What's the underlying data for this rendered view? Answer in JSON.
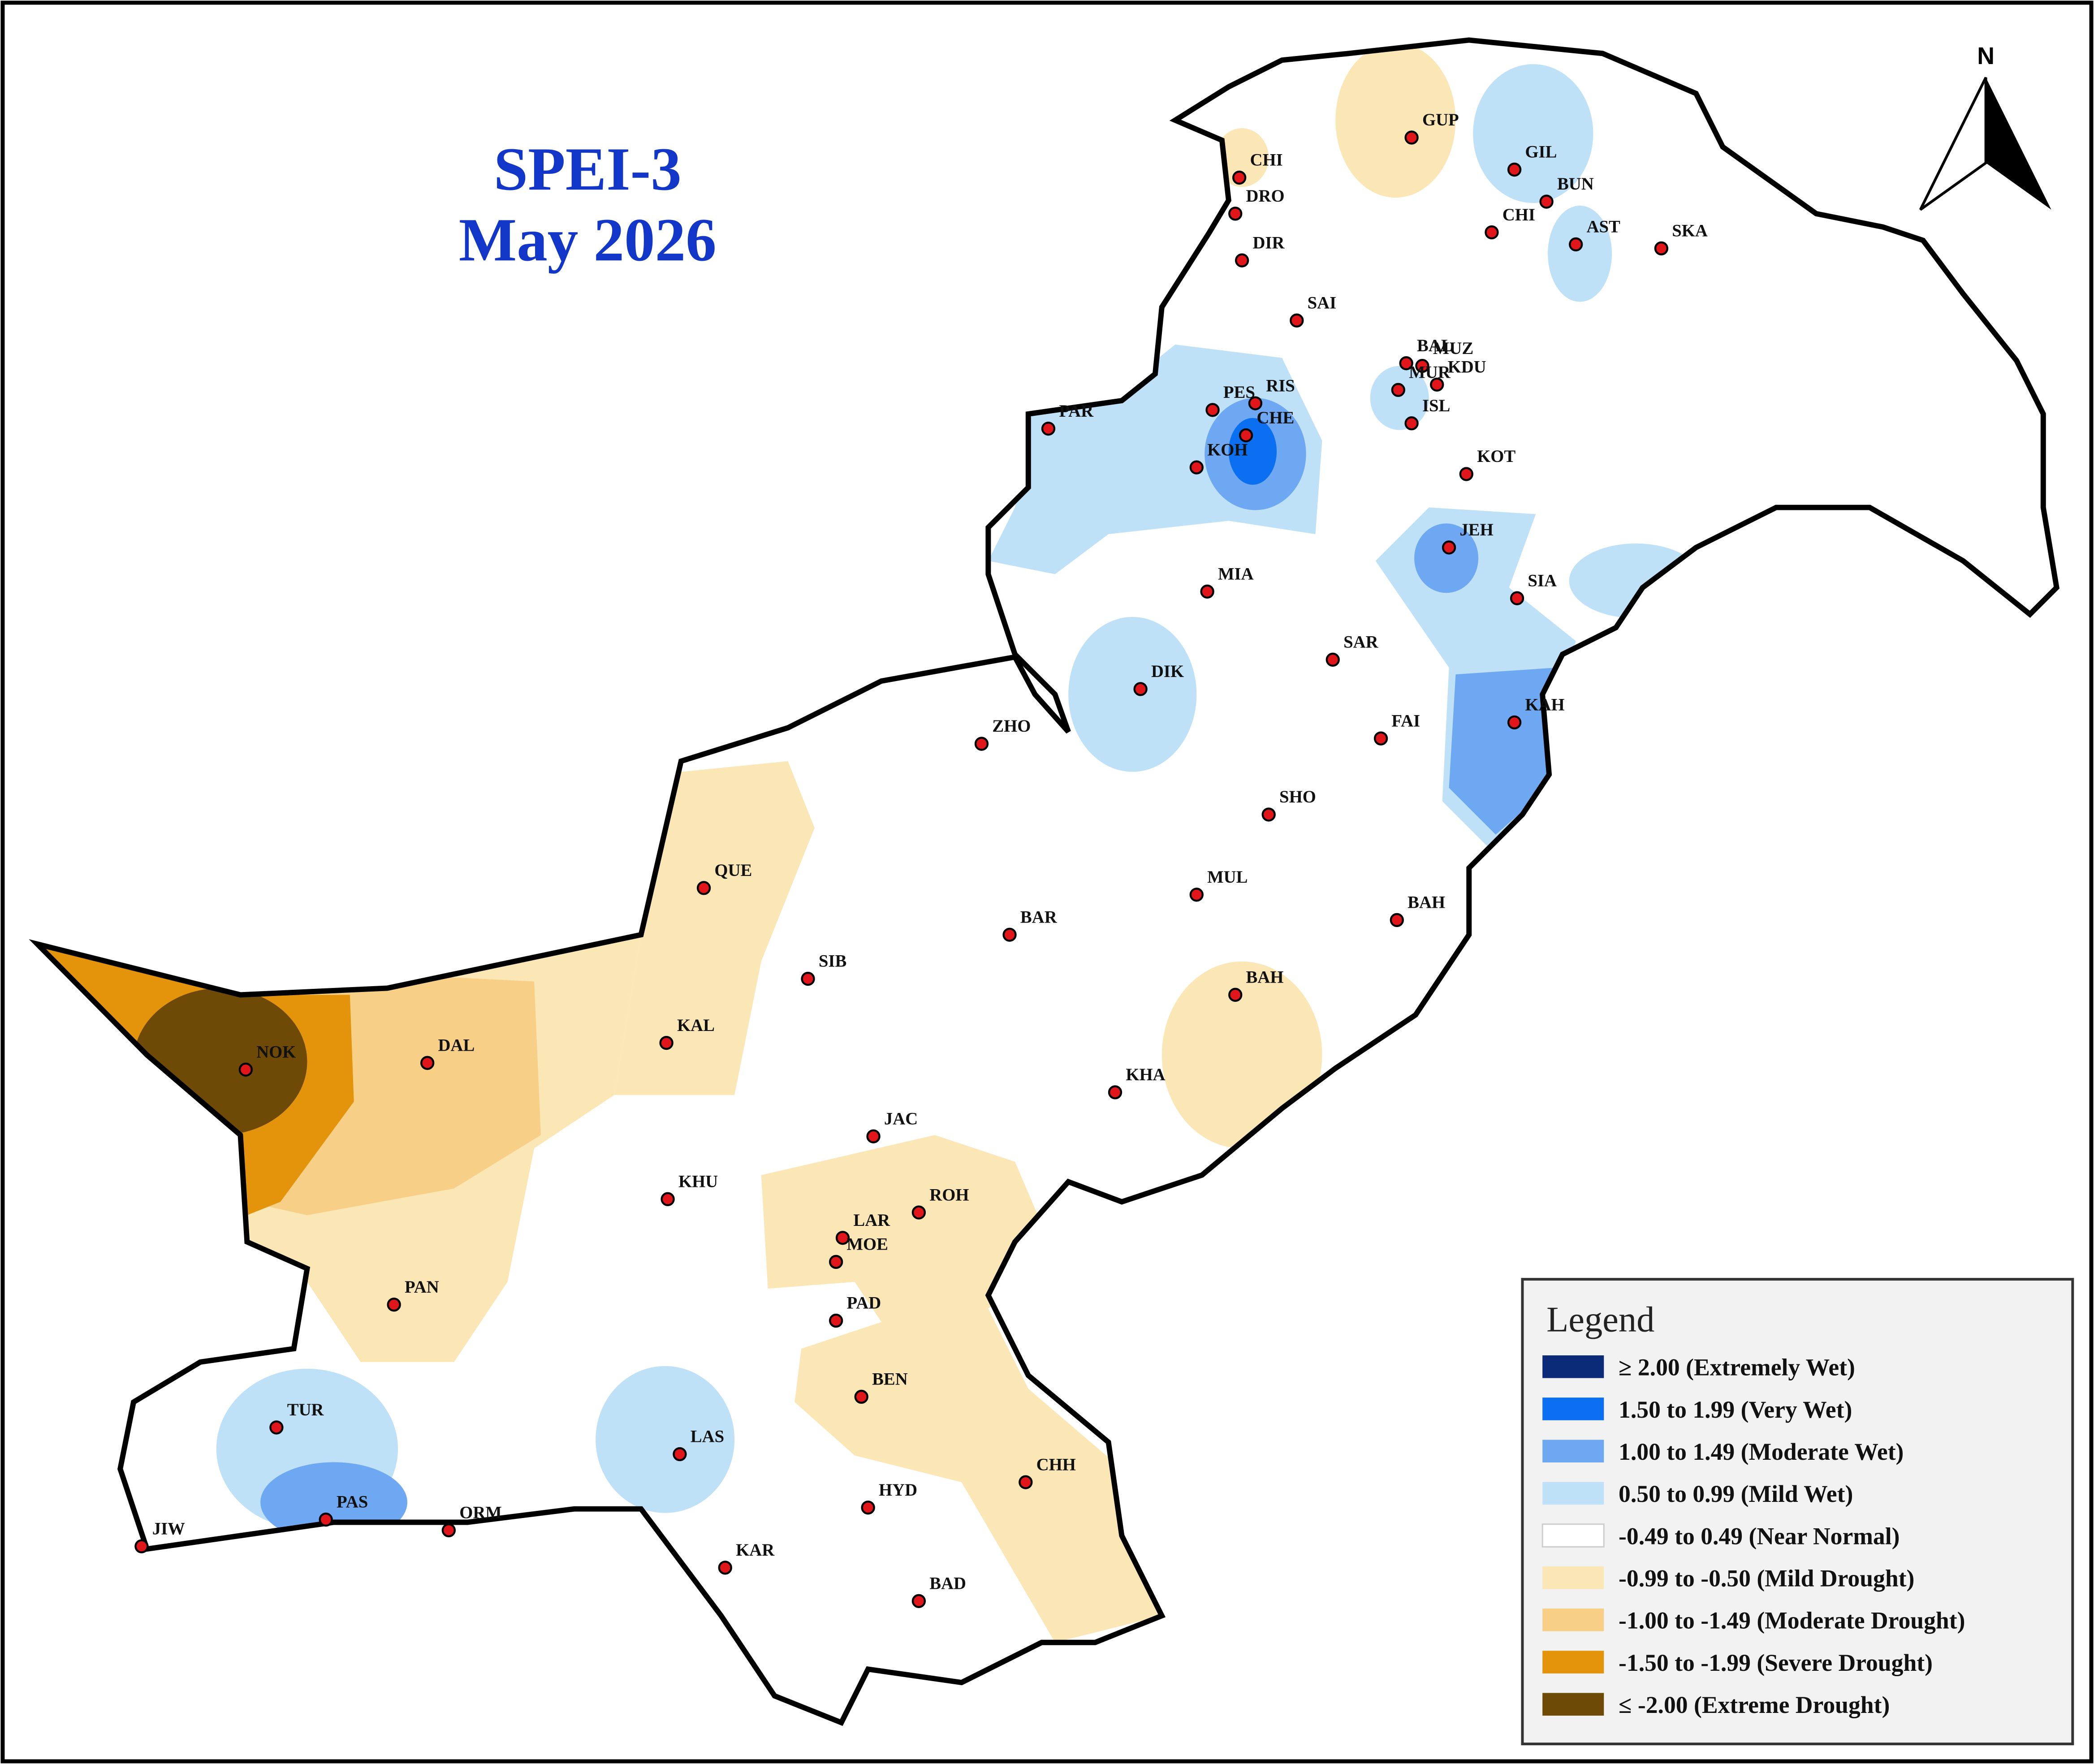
{
  "title": {
    "line1": "SPEI-3",
    "line2": "May 2026"
  },
  "north": "N",
  "legend": {
    "title": "Legend",
    "items": [
      {
        "label": "≥ 2.00 (Extremely Wet)",
        "color": "#0b2a78"
      },
      {
        "label": "1.50 to 1.99 (Very Wet)",
        "color": "#0a6ff0"
      },
      {
        "label": "1.00 to 1.49 (Moderate Wet)",
        "color": "#6fa8f2"
      },
      {
        "label": "0.50 to 0.99 (Mild Wet)",
        "color": "#bfe1f8"
      },
      {
        "label": "-0.49 to 0.49 (Near Normal)",
        "color": "#ffffff"
      },
      {
        "label": "-0.99 to -0.50 (Mild Drought)",
        "color": "#fbe7b5"
      },
      {
        "label": "-1.00 to -1.49 (Moderate Drought)",
        "color": "#f8cf86"
      },
      {
        "label": "-1.50 to -1.99 (Severe Drought)",
        "color": "#e4940b"
      },
      {
        "label": "≤ -2.00 (Extreme Drought)",
        "color": "#6e4a06"
      }
    ]
  },
  "stations": [
    "CHI",
    "DRO",
    "DIR",
    "GUP",
    "GIL",
    "BUN",
    "CHI",
    "AST",
    "SKA",
    "SAI",
    "BAL",
    "MUZ",
    "KDU",
    "PES",
    "RIS",
    "CHE",
    "KOH",
    "PAR",
    "MUR",
    "ISL",
    "KOT",
    "JEH",
    "SIA",
    "MIA",
    "SAR",
    "DIK",
    "ZHO",
    "KAH",
    "FAI",
    "SHO",
    "MUL",
    "BAH",
    "BAR",
    "QUE",
    "SIB",
    "BAH",
    "KAL",
    "NOK",
    "DAL",
    "KHA",
    "JAC",
    "KHU",
    "ROH",
    "LAR",
    "MOE",
    "PAD",
    "PAN",
    "BEN",
    "TUR",
    "LAS",
    "CHH",
    "HYD",
    "PAS",
    "ORM",
    "JIW",
    "KAR",
    "BAD"
  ]
}
